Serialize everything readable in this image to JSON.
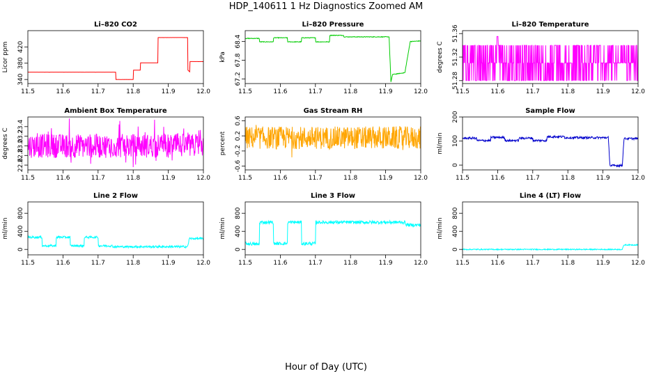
{
  "figure": {
    "title": "HDP_140611  1 Hz Diagnostics Zoomed AM",
    "xlabel": "Hour of Day (UTC)"
  },
  "chart_data": [
    {
      "type": "line",
      "title": "Li–820 CO2",
      "ylabel": "Licor ppm",
      "color": "#ff0000",
      "xlim": [
        11.5,
        12.0
      ],
      "ylim": [
        330,
        460
      ],
      "xticks": [
        "11.5",
        "11.6",
        "11.7",
        "11.8",
        "11.9",
        "12.0"
      ],
      "yticks": [
        "340",
        "380",
        "420"
      ],
      "noise": 0.004,
      "series": [
        {
          "name": "CO2",
          "x": [
            11.5,
            11.75,
            11.751,
            11.8,
            11.801,
            11.82,
            11.821,
            11.87,
            11.871,
            11.955,
            11.956,
            11.961,
            11.962,
            12.0
          ],
          "y": [
            358,
            358,
            340,
            340,
            363,
            363,
            381,
            381,
            443,
            443,
            363,
            359,
            384,
            384
          ]
        }
      ]
    },
    {
      "type": "line",
      "title": "Li–820 Pressure",
      "ylabel": "kPa",
      "color": "#00cc00",
      "xlim": [
        11.5,
        12.0
      ],
      "ylim": [
        67.05,
        68.75
      ],
      "xticks": [
        "11.5",
        "11.6",
        "11.7",
        "11.8",
        "11.9",
        "12.0"
      ],
      "yticks": [
        "67.2",
        "67.8",
        "68.4"
      ],
      "noise": 0.006,
      "series": [
        {
          "name": "Pressure",
          "x": [
            11.5,
            11.54,
            11.541,
            11.58,
            11.581,
            11.62,
            11.621,
            11.66,
            11.661,
            11.7,
            11.701,
            11.74,
            11.741,
            11.78,
            11.781,
            11.91,
            11.915,
            11.92,
            11.925,
            11.955,
            11.97,
            12.0
          ],
          "y": [
            68.5,
            68.5,
            68.39,
            68.39,
            68.52,
            68.52,
            68.39,
            68.39,
            68.52,
            68.52,
            68.39,
            68.39,
            68.6,
            68.6,
            68.55,
            68.55,
            67.1,
            67.35,
            67.35,
            67.4,
            68.4,
            68.42
          ]
        }
      ]
    },
    {
      "type": "line",
      "title": "Li–820 Temperature",
      "ylabel": "degrees C",
      "color": "#ff00ff",
      "xlim": [
        11.5,
        12.0
      ],
      "ylim": [
        51.275,
        51.365
      ],
      "xticks": [
        "11.5",
        "11.6",
        "11.7",
        "11.8",
        "11.9",
        "12.0"
      ],
      "yticks": [
        "51.28",
        "51.32",
        "51.36"
      ],
      "noise": 0,
      "series": [
        {
          "name": "Temperature",
          "x": [
            11.5,
            12.0
          ],
          "y": [
            51.31,
            51.31
          ]
        }
      ]
    },
    {
      "type": "line",
      "title": "Ambient Box Temperature",
      "ylabel": "degrees C",
      "color": "#ff00ff",
      "xlim": [
        11.5,
        12.0
      ],
      "ylim": [
        22.5,
        23.6
      ],
      "xticks": [
        "11.5",
        "11.6",
        "11.7",
        "11.8",
        "11.9",
        "12.0"
      ],
      "yticks": [
        "22.6",
        "22.8",
        "23.0",
        "23.2",
        "23.4"
      ],
      "noise": 0,
      "series": [
        {
          "name": "Ambient",
          "x": [
            11.5,
            12.0
          ],
          "y": [
            23.0,
            23.0
          ]
        }
      ]
    },
    {
      "type": "line",
      "title": "Gas Stream RH",
      "ylabel": "percent",
      "color": "#ffa500",
      "xlim": [
        11.5,
        12.0
      ],
      "ylim": [
        -0.7,
        0.7
      ],
      "xticks": [
        "11.5",
        "11.6",
        "11.7",
        "11.8",
        "11.9",
        "12.0"
      ],
      "yticks": [
        "-0.6",
        "-0.2",
        "0.2",
        "0.6"
      ],
      "noise": 0,
      "series": [
        {
          "name": "RH",
          "x": [
            11.5,
            12.0
          ],
          "y": [
            0.15,
            0.15
          ]
        }
      ]
    },
    {
      "type": "line",
      "title": "Sample Flow",
      "ylabel": "ml/min",
      "color": "#0000cc",
      "xlim": [
        11.5,
        12.0
      ],
      "ylim": [
        -20,
        200
      ],
      "xticks": [
        "11.5",
        "11.6",
        "11.7",
        "11.8",
        "11.9",
        "12.0"
      ],
      "yticks": [
        "0",
        "100",
        "200"
      ],
      "noise": 2,
      "series": [
        {
          "name": "Sample Flow",
          "x": [
            11.5,
            11.54,
            11.541,
            11.58,
            11.581,
            11.62,
            11.621,
            11.66,
            11.661,
            11.7,
            11.701,
            11.74,
            11.741,
            11.79,
            11.791,
            11.915,
            11.92,
            11.955,
            11.96,
            12.0
          ],
          "y": [
            112,
            112,
            102,
            102,
            115,
            115,
            102,
            102,
            112,
            112,
            102,
            102,
            118,
            118,
            114,
            114,
            -2,
            -2,
            110,
            110
          ]
        }
      ]
    },
    {
      "type": "line",
      "title": "Line 2 Flow",
      "ylabel": "ml/min",
      "color": "#00ffff",
      "xlim": [
        11.5,
        12.0
      ],
      "ylim": [
        -120,
        1050
      ],
      "xticks": [
        "11.5",
        "11.6",
        "11.7",
        "11.8",
        "11.9",
        "12.0"
      ],
      "yticks": [
        "0",
        "400",
        "800"
      ],
      "noise": 2,
      "series": [
        {
          "name": "Line 2",
          "x": [
            11.5,
            11.54,
            11.541,
            11.58,
            11.581,
            11.62,
            11.621,
            11.66,
            11.661,
            11.7,
            11.701,
            11.74,
            11.741,
            11.79,
            11.795,
            11.955,
            11.96,
            12.0
          ],
          "y": [
            270,
            270,
            80,
            80,
            270,
            270,
            80,
            80,
            270,
            270,
            80,
            80,
            60,
            60,
            60,
            60,
            240,
            240
          ]
        }
      ]
    },
    {
      "type": "line",
      "title": "Line 3 Flow",
      "ylabel": "ml/min",
      "color": "#00ffff",
      "xlim": [
        11.5,
        12.0
      ],
      "ylim": [
        -120,
        1050
      ],
      "xticks": [
        "11.5",
        "11.6",
        "11.7",
        "11.8",
        "11.9",
        "12.0"
      ],
      "yticks": [
        "0",
        "400",
        "800"
      ],
      "noise": 3,
      "series": [
        {
          "name": "Line 3",
          "x": [
            11.5,
            11.54,
            11.541,
            11.58,
            11.581,
            11.62,
            11.621,
            11.66,
            11.661,
            11.7,
            11.701,
            11.74,
            11.741,
            11.955,
            11.96,
            12.0
          ],
          "y": [
            130,
            110,
            600,
            600,
            130,
            130,
            600,
            600,
            130,
            130,
            600,
            600,
            600,
            600,
            540,
            540
          ]
        }
      ]
    },
    {
      "type": "line",
      "title": "Line 4 (LT) Flow",
      "ylabel": "ml/min",
      "color": "#00ffff",
      "xlim": [
        11.5,
        12.0
      ],
      "ylim": [
        -120,
        1050
      ],
      "xticks": [
        "11.5",
        "11.6",
        "11.7",
        "11.8",
        "11.9",
        "12.0"
      ],
      "yticks": [
        "0",
        "400",
        "800"
      ],
      "noise": 1,
      "series": [
        {
          "name": "Line 4",
          "x": [
            11.5,
            11.955,
            11.96,
            12.0
          ],
          "y": [
            0,
            0,
            100,
            100
          ]
        }
      ]
    }
  ]
}
